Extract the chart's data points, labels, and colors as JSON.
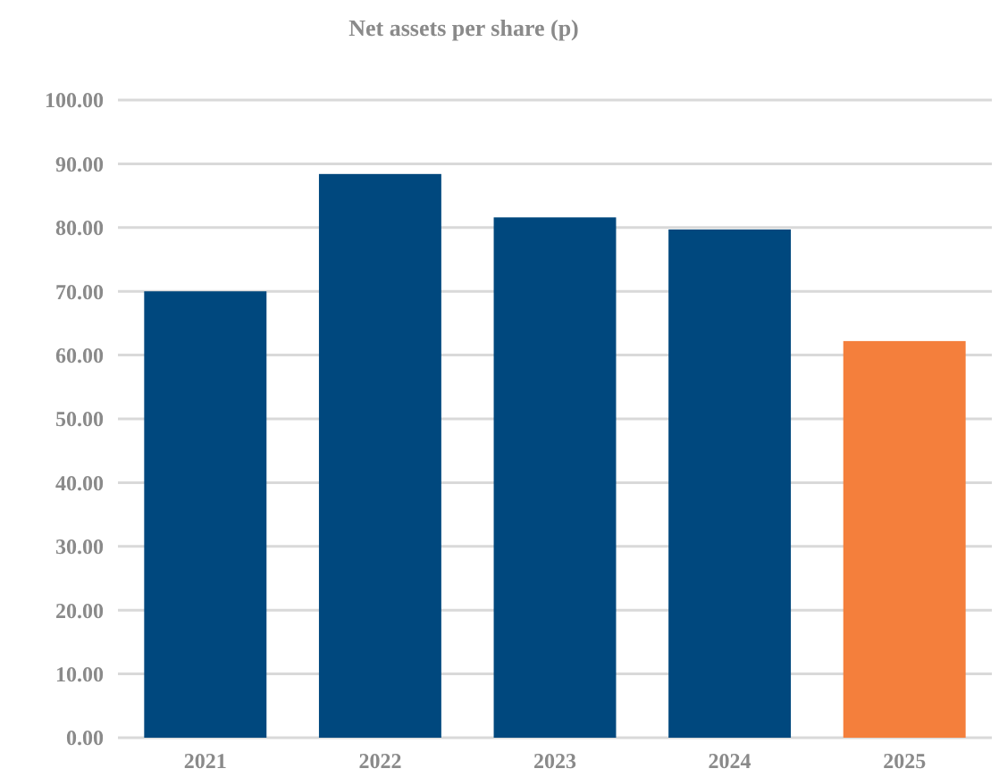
{
  "chart_data": {
    "type": "bar",
    "title": "Net assets per share (p)",
    "categories": [
      "2021",
      "2022",
      "2023",
      "2024",
      "2025"
    ],
    "values": [
      70.0,
      88.4,
      81.6,
      79.7,
      62.2
    ],
    "colors": [
      "#00487e",
      "#00487e",
      "#00487e",
      "#00487e",
      "#f47f3c"
    ],
    "ylim": [
      0,
      100
    ],
    "yticks": [
      {
        "value": 0,
        "label": "0.00"
      },
      {
        "value": 10,
        "label": "10.00"
      },
      {
        "value": 20,
        "label": "20.00"
      },
      {
        "value": 30,
        "label": "30.00"
      },
      {
        "value": 40,
        "label": "40.00"
      },
      {
        "value": 50,
        "label": "50.00"
      },
      {
        "value": 60,
        "label": "60.00"
      },
      {
        "value": 70,
        "label": "70.00"
      },
      {
        "value": 80,
        "label": "80.00"
      },
      {
        "value": 90,
        "label": "90.00"
      },
      {
        "value": 100,
        "label": "100.00"
      }
    ],
    "grid": "y"
  }
}
